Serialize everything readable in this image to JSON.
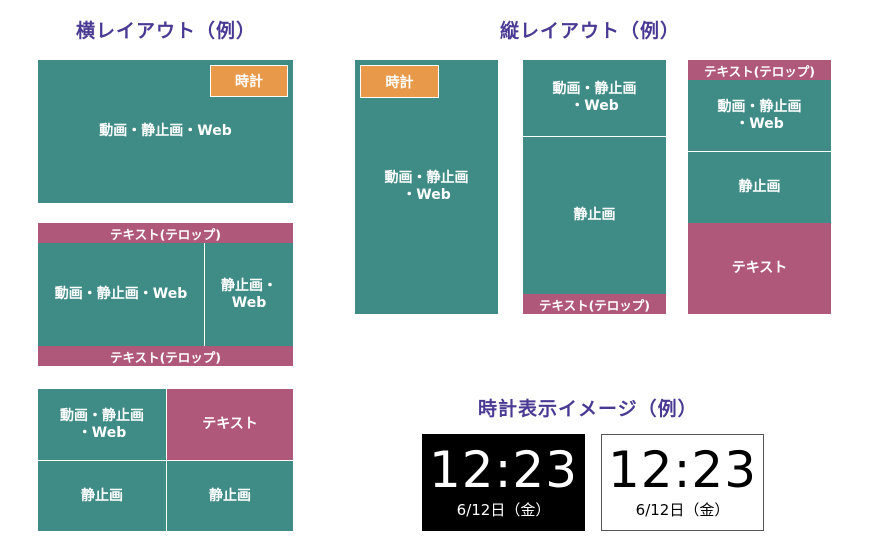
{
  "horizontal": {
    "title": "横レイアウト（例）",
    "layout1": {
      "clock": "時計",
      "main": "動画・静止画・Web"
    },
    "layout2": {
      "top_bar": "テキスト(テロップ)",
      "left": "動画・静止画・Web",
      "right_line1": "静止画・",
      "right_line2": "Web",
      "bottom_bar": "テキスト(テロップ)"
    },
    "layout3": {
      "tl_line1": "動画・静止画",
      "tl_line2": "・Web",
      "tr": "テキスト",
      "bl": "静止画",
      "br": "静止画"
    }
  },
  "vertical": {
    "title": "縦レイアウト（例）",
    "layout1": {
      "clock": "時計",
      "main_line1": "動画・静止画",
      "main_line2": "・Web"
    },
    "layout2": {
      "top_line1": "動画・静止画",
      "top_line2": "・Web",
      "middle": "静止画",
      "bottom_bar": "テキスト(テロップ)"
    },
    "layout3": {
      "top_bar": "テキスト(テロップ)",
      "upper_line1": "動画・静止画",
      "upper_line2": "・Web",
      "middle": "静止画",
      "bottom": "テキスト"
    }
  },
  "clock_display": {
    "title": "時計表示イメージ（例）",
    "dark": {
      "time": "12:23",
      "date": "6/12日（金）"
    },
    "light": {
      "time": "12:23",
      "date": "6/12日（金）"
    }
  },
  "colors": {
    "teal": "#3f8b86",
    "rose": "#b0587a",
    "orange": "#e8994a",
    "title": "#4a3a93"
  }
}
